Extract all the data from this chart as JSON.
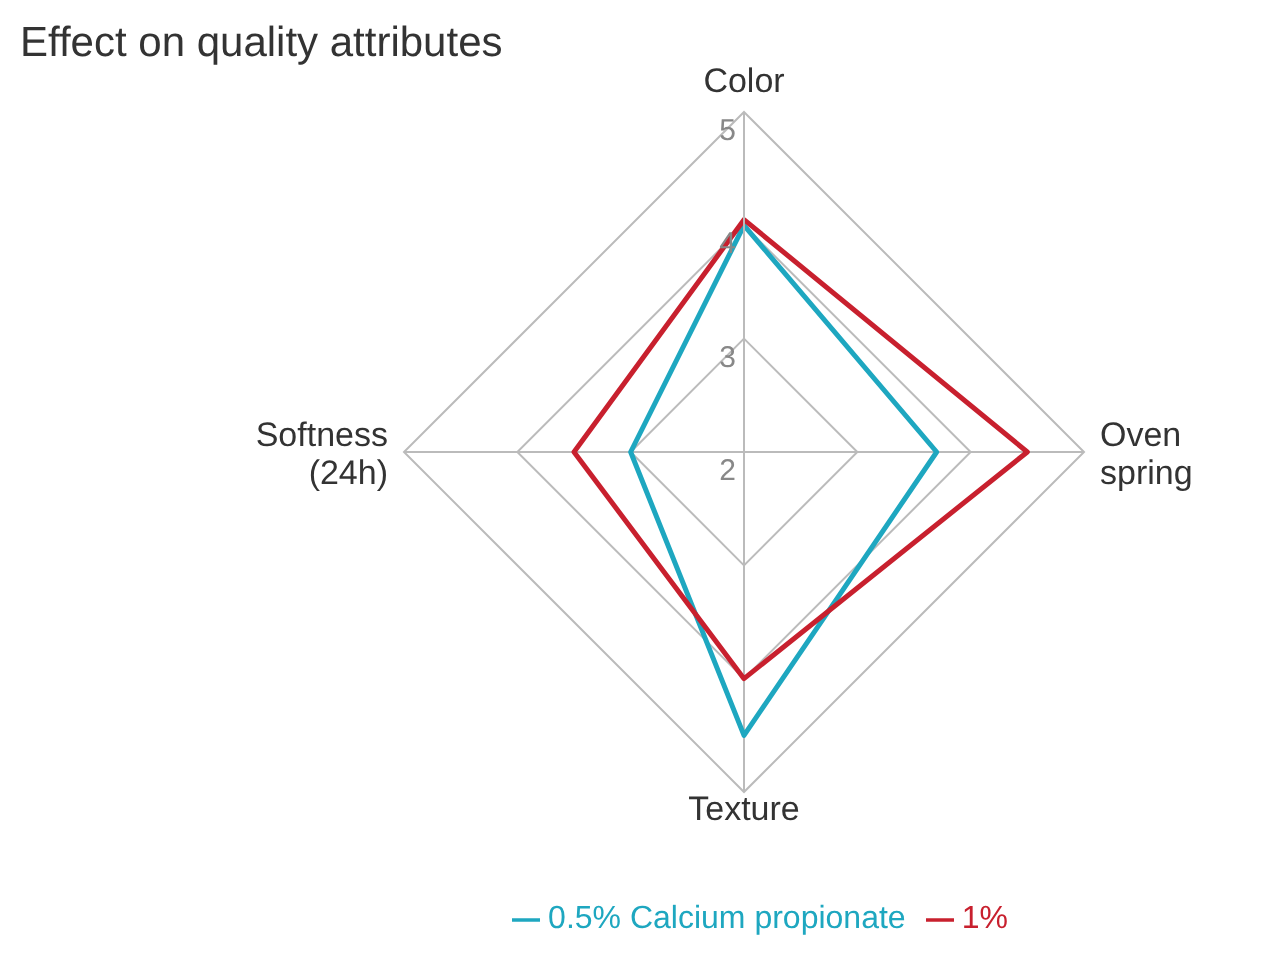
{
  "chart_data": {
    "type": "radar",
    "title": "Effect on quality attributes",
    "categories": [
      "Color",
      "Oven spring",
      "Texture",
      "Softness (24h)"
    ],
    "ylim": [
      2,
      5
    ],
    "yticks": [
      2,
      3,
      4,
      5
    ],
    "legend": "bottom",
    "grid": true,
    "series": [
      {
        "name": "0.5% Calcium propionate",
        "color": "#1ea7c0",
        "values": [
          4.0,
          3.7,
          4.5,
          3.0
        ]
      },
      {
        "name": "1%",
        "color": "#c8202e",
        "values": [
          4.05,
          4.5,
          4.0,
          3.5
        ]
      }
    ]
  }
}
